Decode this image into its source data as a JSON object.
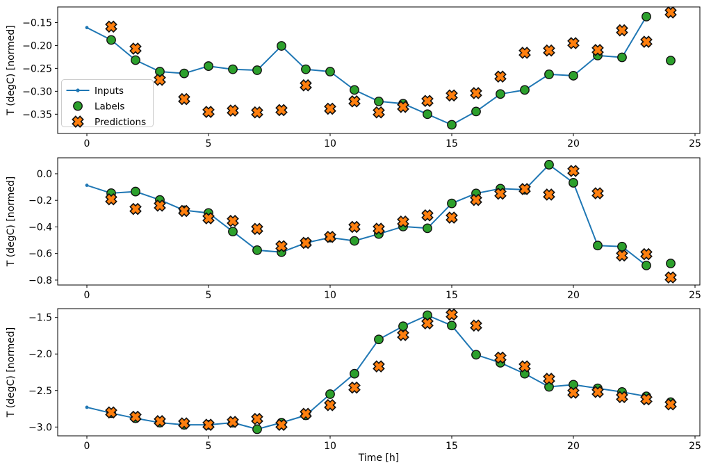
{
  "figure": {
    "background": "#ffffff",
    "xlabel": "Time [h]",
    "ylabel": "T (degC) [normed]"
  },
  "legend": {
    "position": "upper-left-inside-first-subplot",
    "items": [
      {
        "label": "Inputs",
        "marker": "line-dot",
        "color": "#1f77b4"
      },
      {
        "label": "Labels",
        "marker": "circle",
        "color": "#2ca02c"
      },
      {
        "label": "Predictions",
        "marker": "x",
        "color": "#ff7f0e"
      }
    ]
  },
  "colors": {
    "inputs_line": "#1f77b4",
    "labels_marker": "#2ca02c",
    "predictions_marker": "#ff7f0e",
    "marker_edge": "#111111",
    "axis": "#000000",
    "legend_border": "#cccccc"
  },
  "chart_data": [
    {
      "type": "line",
      "title": "",
      "xlabel": "",
      "ylabel": "T (degC) [normed]",
      "xlim": [
        -1.2,
        25.2
      ],
      "ylim": [
        -0.392,
        -0.116
      ],
      "xticks": [
        0,
        5,
        10,
        15,
        20,
        25
      ],
      "xticklabels": [
        "0",
        "5",
        "10",
        "15",
        "20",
        "25"
      ],
      "yticks": [
        -0.15,
        -0.2,
        -0.25,
        -0.3,
        -0.35
      ],
      "yticklabels": [
        "−0.15",
        "−0.20",
        "−0.25",
        "−0.30",
        "−0.35"
      ],
      "grid": false,
      "series": [
        {
          "name": "Inputs",
          "style": "line-dot",
          "color": "#1f77b4",
          "x": [
            0,
            1,
            2,
            3,
            4,
            5,
            6,
            7,
            8,
            9,
            10,
            11,
            12,
            13,
            14,
            15,
            16,
            17,
            18,
            19,
            20,
            21,
            22,
            23
          ],
          "y": [
            -0.161,
            -0.188,
            -0.232,
            -0.257,
            -0.261,
            -0.245,
            -0.252,
            -0.254,
            -0.201,
            -0.252,
            -0.257,
            -0.297,
            -0.322,
            -0.327,
            -0.35,
            -0.373,
            -0.344,
            -0.306,
            -0.297,
            -0.263,
            -0.266,
            -0.222,
            -0.226,
            -0.137
          ]
        },
        {
          "name": "Labels",
          "style": "scatter-circle",
          "color": "#2ca02c",
          "x": [
            1,
            2,
            3,
            4,
            5,
            6,
            7,
            8,
            9,
            10,
            11,
            12,
            13,
            14,
            15,
            16,
            17,
            18,
            19,
            20,
            21,
            22,
            23,
            24
          ],
          "y": [
            -0.188,
            -0.232,
            -0.257,
            -0.261,
            -0.245,
            -0.252,
            -0.254,
            -0.201,
            -0.252,
            -0.257,
            -0.297,
            -0.322,
            -0.327,
            -0.35,
            -0.373,
            -0.344,
            -0.306,
            -0.297,
            -0.263,
            -0.266,
            -0.222,
            -0.226,
            -0.137,
            -0.233
          ]
        },
        {
          "name": "Predictions",
          "style": "scatter-x",
          "color": "#ff7f0e",
          "x": [
            1,
            2,
            3,
            4,
            5,
            6,
            7,
            8,
            9,
            10,
            11,
            12,
            13,
            14,
            15,
            16,
            17,
            18,
            19,
            20,
            21,
            22,
            23,
            24
          ],
          "y": [
            -0.159,
            -0.207,
            -0.275,
            -0.317,
            -0.345,
            -0.342,
            -0.346,
            -0.341,
            -0.287,
            -0.338,
            -0.322,
            -0.346,
            -0.334,
            -0.321,
            -0.309,
            -0.304,
            -0.268,
            -0.216,
            -0.211,
            -0.195,
            -0.21,
            -0.167,
            -0.192,
            -0.128
          ]
        }
      ]
    },
    {
      "type": "line",
      "title": "",
      "xlabel": "",
      "ylabel": "T (degC) [normed]",
      "xlim": [
        -1.2,
        25.2
      ],
      "ylim": [
        -0.837,
        0.12
      ],
      "xticks": [
        0,
        5,
        10,
        15,
        20,
        25
      ],
      "xticklabels": [
        "0",
        "5",
        "10",
        "15",
        "20",
        "25"
      ],
      "yticks": [
        0.0,
        -0.2,
        -0.4,
        -0.6,
        -0.8
      ],
      "yticklabels": [
        "0.0",
        "−0.2",
        "−0.4",
        "−0.6",
        "−0.8"
      ],
      "grid": false,
      "series": [
        {
          "name": "Inputs",
          "style": "line-dot",
          "color": "#1f77b4",
          "x": [
            0,
            1,
            2,
            3,
            4,
            5,
            6,
            7,
            8,
            9,
            10,
            11,
            12,
            13,
            14,
            15,
            16,
            17,
            18,
            19,
            20,
            21,
            22,
            23
          ],
          "y": [
            -0.087,
            -0.146,
            -0.134,
            -0.197,
            -0.275,
            -0.295,
            -0.435,
            -0.575,
            -0.59,
            -0.52,
            -0.48,
            -0.505,
            -0.453,
            -0.397,
            -0.41,
            -0.223,
            -0.148,
            -0.112,
            -0.12,
            0.068,
            -0.068,
            -0.54,
            -0.548,
            -0.69
          ]
        },
        {
          "name": "Labels",
          "style": "scatter-circle",
          "color": "#2ca02c",
          "x": [
            1,
            2,
            3,
            4,
            5,
            6,
            7,
            8,
            9,
            10,
            11,
            12,
            13,
            14,
            15,
            16,
            17,
            18,
            19,
            20,
            21,
            22,
            23,
            24
          ],
          "y": [
            -0.146,
            -0.134,
            -0.197,
            -0.275,
            -0.295,
            -0.435,
            -0.575,
            -0.59,
            -0.52,
            -0.48,
            -0.505,
            -0.453,
            -0.397,
            -0.41,
            -0.223,
            -0.148,
            -0.112,
            -0.12,
            0.068,
            -0.068,
            -0.54,
            -0.548,
            -0.69,
            -0.675
          ]
        },
        {
          "name": "Predictions",
          "style": "scatter-x",
          "color": "#ff7f0e",
          "x": [
            1,
            2,
            3,
            4,
            5,
            6,
            7,
            8,
            9,
            10,
            11,
            12,
            13,
            14,
            15,
            16,
            17,
            18,
            19,
            20,
            21,
            22,
            23,
            24
          ],
          "y": [
            -0.192,
            -0.265,
            -0.24,
            -0.28,
            -0.335,
            -0.355,
            -0.415,
            -0.545,
            -0.52,
            -0.475,
            -0.4,
            -0.414,
            -0.36,
            -0.313,
            -0.33,
            -0.197,
            -0.15,
            -0.115,
            -0.157,
            0.021,
            -0.147,
            -0.615,
            -0.605,
            -0.78
          ]
        }
      ]
    },
    {
      "type": "line",
      "title": "",
      "xlabel": "Time [h]",
      "ylabel": "T (degC) [normed]",
      "xlim": [
        -1.2,
        25.2
      ],
      "ylim": [
        -3.121,
        -1.379
      ],
      "xticks": [
        0,
        5,
        10,
        15,
        20,
        25
      ],
      "xticklabels": [
        "0",
        "5",
        "10",
        "15",
        "20",
        "25"
      ],
      "yticks": [
        -1.5,
        -2.0,
        -2.5,
        -3.0
      ],
      "yticklabels": [
        "−1.5",
        "−2.0",
        "−2.5",
        "−3.0"
      ],
      "grid": false,
      "series": [
        {
          "name": "Inputs",
          "style": "line-dot",
          "color": "#1f77b4",
          "x": [
            0,
            1,
            2,
            3,
            4,
            5,
            6,
            7,
            8,
            9,
            10,
            11,
            12,
            13,
            14,
            15,
            16,
            17,
            18,
            19,
            20,
            21,
            22,
            23
          ],
          "y": [
            -2.73,
            -2.81,
            -2.88,
            -2.94,
            -2.97,
            -2.97,
            -2.94,
            -3.03,
            -2.94,
            -2.84,
            -2.55,
            -2.27,
            -1.8,
            -1.62,
            -1.47,
            -1.61,
            -2.01,
            -2.12,
            -2.27,
            -2.45,
            -2.42,
            -2.47,
            -2.52,
            -2.58
          ]
        },
        {
          "name": "Labels",
          "style": "scatter-circle",
          "color": "#2ca02c",
          "x": [
            1,
            2,
            3,
            4,
            5,
            6,
            7,
            8,
            9,
            10,
            11,
            12,
            13,
            14,
            15,
            16,
            17,
            18,
            19,
            20,
            21,
            22,
            23,
            24
          ],
          "y": [
            -2.81,
            -2.88,
            -2.94,
            -2.97,
            -2.97,
            -2.94,
            -3.03,
            -2.94,
            -2.84,
            -2.55,
            -2.27,
            -1.8,
            -1.62,
            -1.47,
            -1.61,
            -2.01,
            -2.12,
            -2.27,
            -2.45,
            -2.42,
            -2.47,
            -2.52,
            -2.58,
            -2.66
          ]
        },
        {
          "name": "Predictions",
          "style": "scatter-x",
          "color": "#ff7f0e",
          "x": [
            1,
            2,
            3,
            4,
            5,
            6,
            7,
            8,
            9,
            10,
            11,
            12,
            13,
            14,
            15,
            16,
            17,
            18,
            19,
            20,
            21,
            22,
            23,
            24
          ],
          "y": [
            -2.8,
            -2.86,
            -2.92,
            -2.95,
            -2.97,
            -2.93,
            -2.89,
            -2.97,
            -2.82,
            -2.7,
            -2.46,
            -2.17,
            -1.74,
            -1.58,
            -1.46,
            -1.61,
            -2.05,
            -2.17,
            -2.34,
            -2.53,
            -2.52,
            -2.59,
            -2.62,
            -2.69
          ]
        }
      ]
    }
  ]
}
